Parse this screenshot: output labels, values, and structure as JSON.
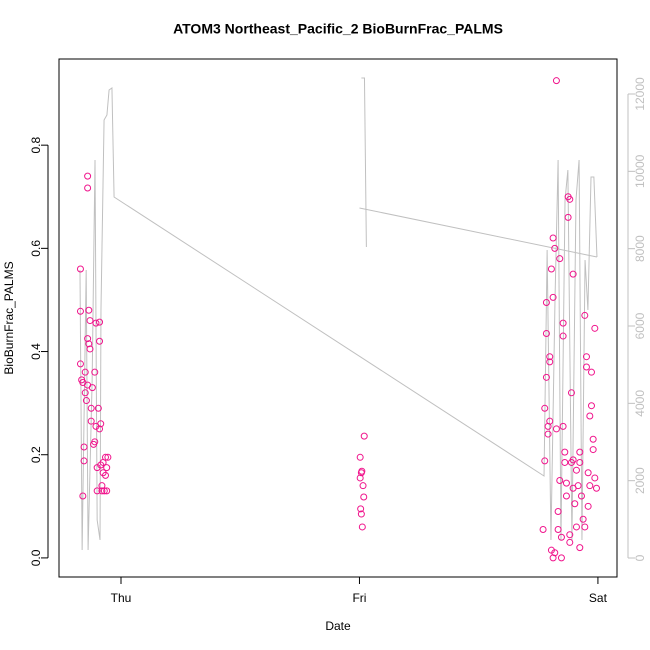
{
  "chart_data": {
    "type": "scatter",
    "title": "ATOM3 Northeast_Pacific_2 BioBurnFrac_PALMS",
    "xlabel": "Date",
    "ylabel": "BioBurnFrac_PALMS",
    "xlim": [
      -0.26,
      2.08
    ],
    "xticks": [
      {
        "value": 0,
        "label": "Thu"
      },
      {
        "value": 1,
        "label": "Fri"
      },
      {
        "value": 2,
        "label": "Sat"
      }
    ],
    "ylim": [
      -0.037,
      0.967
    ],
    "yticks": [
      {
        "value": 0,
        "label": "0.0"
      },
      0.2,
      0.4,
      0.6,
      0.8
    ],
    "y2lim": [
      -491,
      12905
    ],
    "y2ticks": [
      0,
      2000,
      4000,
      6000,
      8000,
      10000,
      12000
    ],
    "series": [
      {
        "type": "line",
        "axis": "y2",
        "color": "#c0c0c0",
        "x": [
          -0.172,
          -0.163,
          -0.146,
          -0.138,
          -0.121,
          -0.109,
          -0.1,
          -0.088,
          -0.084,
          -0.071,
          -0.059,
          -0.05,
          -0.038,
          -0.029,
          1.774,
          1.787,
          1.803,
          1.82,
          1.833,
          1.845,
          1.862,
          1.874,
          1.891,
          1.908,
          1.921,
          1.933,
          1.946,
          1.958,
          1.971,
          1.983,
          1.996,
          null,
          1.008,
          1.021,
          1.029,
          null,
          1.0,
          1.996
        ],
        "values": [
          7448,
          207,
          7448,
          207,
          4603,
          10293,
          983,
          466,
          6414,
          11328,
          11457,
          12103,
          12155,
          9336,
          2121,
          7966,
          466,
          6672,
          10293,
          466,
          9259,
          10034,
          466,
          9259,
          10293,
          466,
          7707,
          6414,
          9853,
          9853,
          7784,
          null,
          12414,
          12414,
          8043,
          null,
          9052,
          7784
        ]
      },
      {
        "type": "scatter",
        "color": "#f0148c",
        "x": [
          -0.17,
          -0.17,
          -0.17,
          -0.165,
          -0.16,
          -0.155,
          -0.155,
          -0.16,
          -0.15,
          -0.15,
          -0.145,
          -0.14,
          -0.14,
          -0.14,
          -0.14,
          -0.135,
          -0.135,
          -0.13,
          -0.13,
          -0.125,
          -0.125,
          -0.12,
          -0.115,
          -0.11,
          -0.11,
          -0.105,
          -0.105,
          -0.1,
          -0.1,
          -0.095,
          -0.09,
          -0.09,
          -0.09,
          -0.085,
          -0.085,
          -0.08,
          -0.08,
          -0.075,
          -0.075,
          -0.07,
          -0.065,
          -0.065,
          -0.06,
          -0.06,
          -0.055,
          1.003,
          1.003,
          1.005,
          1.008,
          1.01,
          1.012,
          1.015,
          1.018,
          1.02,
          1.008,
          1.77,
          1.777,
          1.777,
          1.784,
          1.784,
          1.784,
          1.791,
          1.791,
          1.798,
          1.798,
          1.798,
          1.805,
          1.805,
          1.812,
          1.812,
          1.812,
          1.819,
          1.819,
          1.826,
          1.826,
          1.833,
          1.833,
          1.84,
          1.84,
          1.847,
          1.847,
          1.854,
          1.854,
          1.854,
          1.861,
          1.861,
          1.868,
          1.868,
          1.875,
          1.875,
          1.882,
          1.882,
          1.882,
          1.889,
          1.889,
          1.896,
          1.896,
          1.903,
          1.91,
          1.91,
          1.917,
          1.924,
          1.924,
          1.931,
          1.938,
          1.945,
          1.945,
          1.952,
          1.952,
          1.959,
          1.959,
          1.966,
          1.966,
          1.973,
          1.973,
          1.98,
          1.98,
          1.987,
          1.987,
          1.994,
          1.924,
          1.896
        ],
        "values": [
          0.56,
          0.478,
          0.376,
          0.345,
          0.34,
          0.215,
          0.188,
          0.12,
          0.36,
          0.32,
          0.305,
          0.74,
          0.717,
          0.425,
          0.335,
          0.48,
          0.415,
          0.46,
          0.405,
          0.29,
          0.265,
          0.33,
          0.22,
          0.36,
          0.225,
          0.455,
          0.255,
          0.175,
          0.13,
          0.29,
          0.457,
          0.42,
          0.25,
          0.26,
          0.18,
          0.14,
          0.13,
          0.185,
          0.165,
          0.13,
          0.195,
          0.16,
          0.175,
          0.13,
          0.195,
          0.195,
          0.155,
          0.095,
          0.085,
          0.168,
          0.06,
          0.14,
          0.118,
          0.236,
          0.165,
          0.055,
          0.29,
          0.188,
          0.495,
          0.435,
          0.35,
          0.255,
          0.24,
          0.39,
          0.38,
          0.265,
          0.56,
          0.015,
          0.62,
          0.505,
          0.0,
          0.6,
          0.01,
          0.925,
          0.25,
          0.09,
          0.055,
          0.58,
          0.15,
          0.04,
          0.0,
          0.455,
          0.43,
          0.255,
          0.205,
          0.185,
          0.145,
          0.12,
          0.7,
          0.66,
          0.695,
          0.045,
          0.03,
          0.32,
          0.185,
          0.55,
          0.135,
          0.105,
          0.17,
          0.06,
          0.14,
          0.185,
          0.02,
          0.12,
          0.075,
          0.47,
          0.06,
          0.39,
          0.37,
          0.165,
          0.1,
          0.275,
          0.14,
          0.36,
          0.295,
          0.23,
          0.21,
          0.445,
          0.155,
          0.135,
          0.205,
          0.19
        ]
      }
    ]
  }
}
